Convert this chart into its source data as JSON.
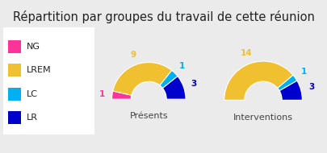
{
  "title": "Répartition par groupes du travail de cette réunion",
  "title_fontsize": 10.5,
  "background_color": "#ebebeb",
  "legend_labels": [
    "NG",
    "LREM",
    "LC",
    "LR"
  ],
  "colors": [
    "#ff3399",
    "#f0c030",
    "#00b0f0",
    "#0000cc"
  ],
  "chart1_label": "Présents",
  "chart1_values": [
    1,
    9,
    1,
    3
  ],
  "chart2_label": "Interventions",
  "chart2_values": [
    0,
    14,
    1,
    3
  ],
  "annot1": [
    {
      "text": "1",
      "color": "#ff3399",
      "group": "NG"
    },
    {
      "text": "9",
      "color": "#f0c030",
      "group": "LREM"
    },
    {
      "text": "1",
      "color": "#00b0f0",
      "group": "LC"
    },
    {
      "text": "3",
      "color": "#0000cc",
      "group": "LR"
    }
  ],
  "annot2": [
    {
      "text": "14",
      "color": "#f0c030",
      "group": "LREM"
    },
    {
      "text": "1",
      "color": "#00b0f0",
      "group": "LC"
    },
    {
      "text": "3",
      "color": "#0000cc",
      "group": "LR"
    }
  ],
  "label_fontsize": 8,
  "annot_fontsize": 7.5,
  "legend_fontsize": 8
}
